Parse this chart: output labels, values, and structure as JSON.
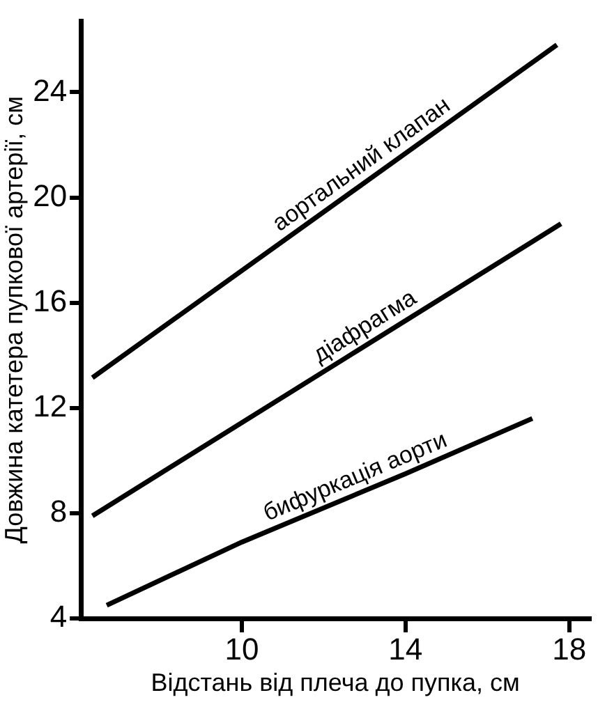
{
  "chart_data": {
    "type": "line",
    "xlabel": "Відстань від плеча до пупка, см",
    "ylabel": "Довжина катетера пупкової артерії, см",
    "xlim": [
      6.07,
      18.5
    ],
    "xticks": [
      10,
      14,
      18
    ],
    "ylim": [
      4,
      26.7
    ],
    "yticks": [
      4,
      8,
      12,
      16,
      20,
      24
    ],
    "grid": false,
    "legend": false,
    "marker": "none",
    "line_style": "solid",
    "series": [
      {
        "name": "аортальний клапан",
        "color": "#000000",
        "x": [
          6.35,
          17.7
        ],
        "values": [
          13.15,
          25.8
        ]
      },
      {
        "name": "діафрагма",
        "color": "#000000",
        "x": [
          6.35,
          17.8
        ],
        "values": [
          7.9,
          19.0
        ]
      },
      {
        "name": "бифуркація аорти",
        "color": "#000000",
        "x": [
          6.7,
          10,
          14,
          17.1
        ],
        "values": [
          4.5,
          6.9,
          9.5,
          11.6
        ]
      }
    ]
  }
}
